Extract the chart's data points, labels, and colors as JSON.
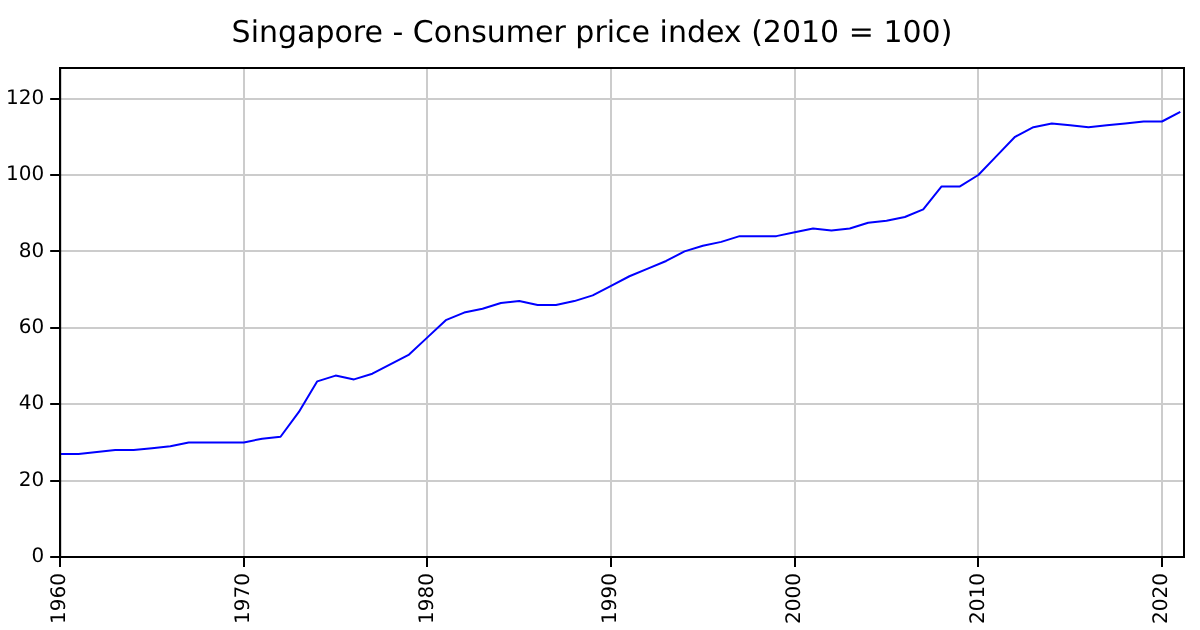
{
  "chart_data": {
    "type": "line",
    "title": "Singapore - Consumer price index (2010 = 100)",
    "x": [
      1960,
      1961,
      1962,
      1963,
      1964,
      1965,
      1966,
      1967,
      1968,
      1969,
      1970,
      1971,
      1972,
      1973,
      1974,
      1975,
      1976,
      1977,
      1978,
      1979,
      1980,
      1981,
      1982,
      1983,
      1984,
      1985,
      1986,
      1987,
      1988,
      1989,
      1990,
      1991,
      1992,
      1993,
      1994,
      1995,
      1996,
      1997,
      1998,
      1999,
      2000,
      2001,
      2002,
      2003,
      2004,
      2005,
      2006,
      2007,
      2008,
      2009,
      2010,
      2011,
      2012,
      2013,
      2014,
      2015,
      2016,
      2017,
      2018,
      2019,
      2020,
      2021
    ],
    "series": [
      {
        "color": "#0000ff",
        "values": [
          27,
          27,
          27.5,
          28,
          28,
          28.5,
          29,
          30,
          30,
          30,
          30,
          31,
          31.5,
          38,
          46,
          47.5,
          46.5,
          48,
          50.5,
          53,
          57.5,
          62,
          64,
          65,
          66.5,
          67,
          66,
          66,
          67,
          68.5,
          71,
          73.5,
          75.5,
          77.5,
          80,
          81.5,
          82.5,
          84,
          84,
          84,
          85,
          86,
          85.5,
          86,
          87.5,
          88,
          89,
          91,
          97,
          97,
          100,
          105,
          110,
          112.5,
          113.5,
          113,
          112.5,
          113,
          113.5,
          114,
          114,
          116.5
        ]
      }
    ],
    "xlim": [
      1960,
      2021.2
    ],
    "xticks": [
      1960,
      1970,
      1980,
      1990,
      2000,
      2010,
      2020
    ],
    "ylim": [
      0,
      128
    ],
    "yticks": [
      0,
      20,
      40,
      60,
      80,
      100,
      120
    ],
    "grid": true,
    "legend": false,
    "marker": "none",
    "line_style": "solid"
  }
}
